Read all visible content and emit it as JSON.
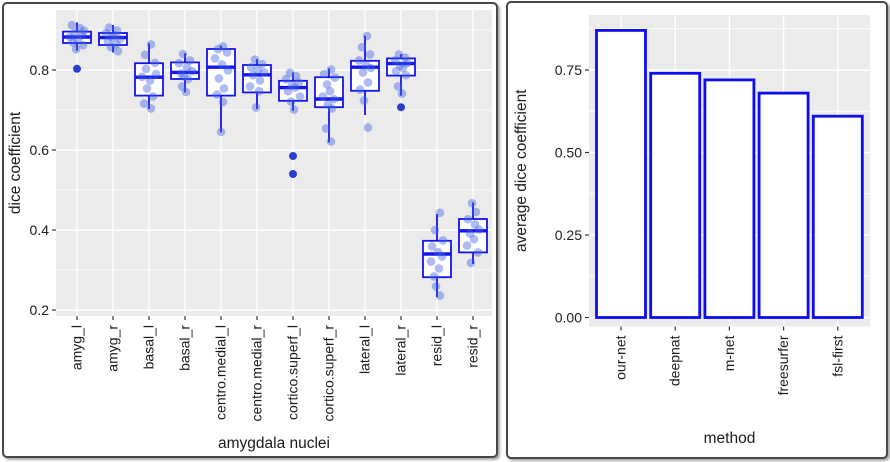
{
  "figure": {
    "background": "#ffffff",
    "panel_fill": "#ebebeb",
    "grid_color": "#ffffff",
    "box_stroke": "#1414ee",
    "bar_stroke": "#0d0dee",
    "bar_fill": "#ffffff",
    "jitter_color": "#3d5fe3",
    "outlier_color": "#1f35cf",
    "text_color": "#1c1c1c",
    "tick_color": "#333333"
  },
  "chart_data": [
    {
      "type": "boxplot",
      "title": "",
      "xlabel": "amygdala nuclei",
      "ylabel": "dice coefficient",
      "legend": "none",
      "grid": "on",
      "ylim": [
        0.185,
        0.95
      ],
      "y_ticks": [
        0.2,
        0.4,
        0.6,
        0.8
      ],
      "y_tick_labels": [
        "0.2",
        "0.4",
        "0.6",
        "0.8"
      ],
      "y_minor_ticks": [
        0.3,
        0.5,
        0.7,
        0.9
      ],
      "categories": [
        "amyg_l",
        "amyg_r",
        "basal_l",
        "basal_r",
        "centro.medial_l",
        "centro.medial_r",
        "cortico.superf_l",
        "cortico.superf_r",
        "lateral_l",
        "lateral_r",
        "resid_l",
        "resid_r"
      ],
      "boxes": [
        {
          "whisker_low": 0.848,
          "q1": 0.8675,
          "median": 0.8825,
          "q3": 0.896,
          "whisker_high": 0.919
        },
        {
          "whisker_low": 0.844,
          "q1": 0.8625,
          "median": 0.881,
          "q3": 0.8925,
          "whisker_high": 0.9125
        },
        {
          "whisker_low": 0.7025,
          "q1": 0.736,
          "median": 0.782,
          "q3": 0.817,
          "whisker_high": 0.867
        },
        {
          "whisker_low": 0.744,
          "q1": 0.7775,
          "median": 0.794,
          "q3": 0.819,
          "whisker_high": 0.842
        },
        {
          "whisker_low": 0.644,
          "q1": 0.736,
          "median": 0.807,
          "q3": 0.8525,
          "whisker_high": 0.861
        },
        {
          "whisker_low": 0.7025,
          "q1": 0.744,
          "median": 0.788,
          "q3": 0.8125,
          "whisker_high": 0.8275
        },
        {
          "whisker_low": 0.698,
          "q1": 0.723,
          "median": 0.756,
          "q3": 0.773,
          "whisker_high": 0.794
        },
        {
          "whisker_low": 0.619,
          "q1": 0.707,
          "median": 0.7275,
          "q3": 0.782,
          "whisker_high": 0.804
        },
        {
          "whisker_low": 0.6875,
          "q1": 0.748,
          "median": 0.807,
          "q3": 0.823,
          "whisker_high": 0.886
        },
        {
          "whisker_low": 0.736,
          "q1": 0.786,
          "median": 0.816,
          "q3": 0.829,
          "whisker_high": 0.84
        },
        {
          "whisker_low": 0.232,
          "q1": 0.282,
          "median": 0.34,
          "q3": 0.373,
          "whisker_high": 0.44
        },
        {
          "whisker_low": 0.315,
          "q1": 0.344,
          "median": 0.398,
          "q3": 0.4275,
          "whisker_high": 0.469
        }
      ],
      "jitter_points": [
        [
          [
            -5,
            0.912
          ],
          [
            3,
            0.905
          ],
          [
            7,
            0.898
          ],
          [
            -2,
            0.893
          ],
          [
            5,
            0.887
          ],
          [
            -7,
            0.882
          ],
          [
            1,
            0.876
          ],
          [
            -4,
            0.869
          ],
          [
            6,
            0.862
          ],
          [
            -1,
            0.852
          ]
        ],
        [
          [
            -4,
            0.906
          ],
          [
            4,
            0.899
          ],
          [
            -7,
            0.892
          ],
          [
            2,
            0.887
          ],
          [
            -1,
            0.882
          ],
          [
            7,
            0.877
          ],
          [
            -5,
            0.871
          ],
          [
            3,
            0.865
          ],
          [
            -2,
            0.857
          ],
          [
            5,
            0.847
          ]
        ],
        [
          [
            2,
            0.864
          ],
          [
            -4,
            0.838
          ],
          [
            6,
            0.818
          ],
          [
            -3,
            0.803
          ],
          [
            7,
            0.79
          ],
          [
            -7,
            0.783
          ],
          [
            1,
            0.774
          ],
          [
            -2,
            0.754
          ],
          [
            4,
            0.734
          ],
          [
            -5,
            0.716
          ],
          [
            2,
            0.704
          ]
        ],
        [
          [
            -2,
            0.84
          ],
          [
            5,
            0.824
          ],
          [
            -6,
            0.817
          ],
          [
            2,
            0.806
          ],
          [
            7,
            0.797
          ],
          [
            -4,
            0.791
          ],
          [
            -1,
            0.784
          ],
          [
            3,
            0.777
          ],
          [
            -3,
            0.759
          ],
          [
            1,
            0.745
          ]
        ],
        [
          [
            2,
            0.859
          ],
          [
            -3,
            0.852
          ],
          [
            6,
            0.844
          ],
          [
            -6,
            0.829
          ],
          [
            1,
            0.814
          ],
          [
            7,
            0.799
          ],
          [
            -2,
            0.779
          ],
          [
            3,
            0.754
          ],
          [
            -4,
            0.739
          ],
          [
            2,
            0.72
          ],
          [
            0,
            0.645
          ]
        ],
        [
          [
            -2,
            0.826
          ],
          [
            5,
            0.815
          ],
          [
            -6,
            0.807
          ],
          [
            1,
            0.8
          ],
          [
            7,
            0.794
          ],
          [
            -4,
            0.787
          ],
          [
            3,
            0.774
          ],
          [
            -7,
            0.759
          ],
          [
            2,
            0.747
          ],
          [
            -1,
            0.706
          ]
        ],
        [
          [
            -3,
            0.793
          ],
          [
            3,
            0.785
          ],
          [
            -7,
            0.777
          ],
          [
            6,
            0.769
          ],
          [
            -1,
            0.762
          ],
          [
            2,
            0.756
          ],
          [
            -5,
            0.747
          ],
          [
            7,
            0.734
          ],
          [
            -2,
            0.721
          ],
          [
            1,
            0.701
          ]
        ],
        [
          [
            2,
            0.801
          ],
          [
            -5,
            0.79
          ],
          [
            6,
            0.781
          ],
          [
            -2,
            0.764
          ],
          [
            1,
            0.747
          ],
          [
            -6,
            0.734
          ],
          [
            5,
            0.727
          ],
          [
            -1,
            0.714
          ],
          [
            3,
            0.704
          ],
          [
            -3,
            0.654
          ],
          [
            2,
            0.621
          ]
        ],
        [
          [
            2,
            0.885
          ],
          [
            -3,
            0.857
          ],
          [
            5,
            0.839
          ],
          [
            -6,
            0.824
          ],
          [
            1,
            0.812
          ],
          [
            6,
            0.805
          ],
          [
            -2,
            0.794
          ],
          [
            3,
            0.769
          ],
          [
            -5,
            0.751
          ],
          [
            -1,
            0.724
          ],
          [
            3,
            0.656
          ]
        ],
        [
          [
            -2,
            0.839
          ],
          [
            4,
            0.831
          ],
          [
            -6,
            0.824
          ],
          [
            6,
            0.817
          ],
          [
            -1,
            0.811
          ],
          [
            2,
            0.805
          ],
          [
            -5,
            0.797
          ],
          [
            5,
            0.787
          ],
          [
            -3,
            0.759
          ],
          [
            1,
            0.741
          ]
        ],
        [
          [
            3,
            0.443
          ],
          [
            -2,
            0.4
          ],
          [
            6,
            0.374
          ],
          [
            -5,
            0.359
          ],
          [
            1,
            0.345
          ],
          [
            5,
            0.334
          ],
          [
            -6,
            0.321
          ],
          [
            2,
            0.304
          ],
          [
            -3,
            0.284
          ],
          [
            -1,
            0.259
          ],
          [
            3,
            0.236
          ]
        ],
        [
          [
            -1,
            0.467
          ],
          [
            3,
            0.445
          ],
          [
            -5,
            0.427
          ],
          [
            2,
            0.414
          ],
          [
            6,
            0.401
          ],
          [
            -3,
            0.391
          ],
          [
            1,
            0.377
          ],
          [
            -6,
            0.361
          ],
          [
            5,
            0.344
          ],
          [
            -2,
            0.318
          ]
        ]
      ],
      "outlier_points": [
        {
          "category_index": 0,
          "value": 0.803
        },
        {
          "category_index": 6,
          "value": 0.585
        },
        {
          "category_index": 6,
          "value": 0.54
        },
        {
          "category_index": 9,
          "value": 0.707
        }
      ]
    },
    {
      "type": "bar",
      "title": "",
      "xlabel": "method",
      "ylabel": "average dice coefficient",
      "legend": "none",
      "grid": "on",
      "ylim": [
        -0.021,
        0.915
      ],
      "y_ticks": [
        0.0,
        0.25,
        0.5,
        0.75
      ],
      "y_tick_labels": [
        "0.00",
        "0.25",
        "0.50",
        "0.75"
      ],
      "y_minor_ticks": [
        0.125,
        0.375,
        0.625,
        0.875
      ],
      "categories": [
        "our-net",
        "deepnat",
        "m-net",
        "freesurfer",
        "fsl-first"
      ],
      "values": [
        0.87,
        0.74,
        0.72,
        0.68,
        0.61
      ]
    }
  ]
}
